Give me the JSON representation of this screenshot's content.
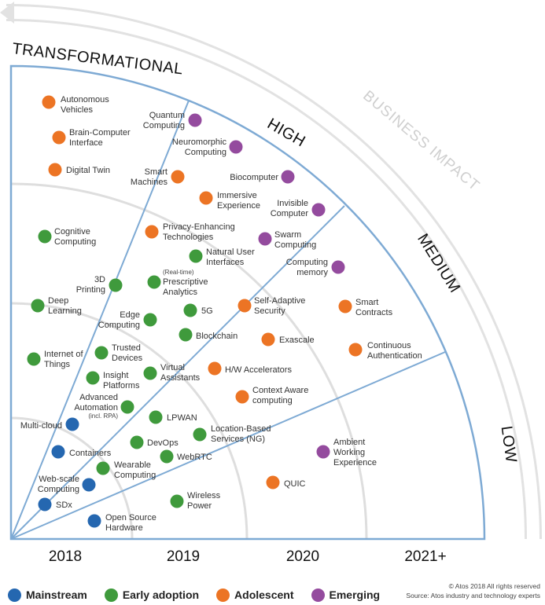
{
  "impact_levels": {
    "transformational": "TRANSFORMATIONAL",
    "high": "HIGH",
    "medium": "MEDIUM",
    "low": "LOW"
  },
  "axis_title": "BUSINESS IMPACT",
  "years": [
    "2018",
    "2019",
    "2020",
    "2021+"
  ],
  "legend": [
    {
      "key": "mainstream",
      "label": "Mainstream",
      "color": "#2567b0"
    },
    {
      "key": "early",
      "label": "Early adoption",
      "color": "#3f9a3c"
    },
    {
      "key": "adolescent",
      "label": "Adolescent",
      "color": "#ec7424"
    },
    {
      "key": "emerging",
      "label": "Emerging",
      "color": "#944b9e"
    }
  ],
  "footer": {
    "copyright": "© Atos 2018 All rights reserved",
    "source": "Source: Atos industry and technology experts"
  },
  "technologies": [
    {
      "name": "Autonomous Vehicles",
      "stage": "adolescent"
    },
    {
      "name": "Brain-Computer Interface",
      "stage": "adolescent"
    },
    {
      "name": "Digital Twin",
      "stage": "adolescent"
    },
    {
      "name": "Quantum Computing",
      "stage": "emerging"
    },
    {
      "name": "Neuromorphic Computing",
      "stage": "emerging"
    },
    {
      "name": "Smart Machines",
      "stage": "adolescent"
    },
    {
      "name": "Biocomputer",
      "stage": "emerging"
    },
    {
      "name": "Immersive Experience",
      "stage": "adolescent"
    },
    {
      "name": "Invisible Computer",
      "stage": "emerging"
    },
    {
      "name": "Cognitive Computing",
      "stage": "early"
    },
    {
      "name": "Privacy-Enhancing Technologies",
      "stage": "adolescent"
    },
    {
      "name": "Swarm Computing",
      "stage": "emerging"
    },
    {
      "name": "Natural User Interfaces",
      "stage": "early"
    },
    {
      "name": "Computing memory",
      "stage": "emerging"
    },
    {
      "name": "3D Printing",
      "stage": "early"
    },
    {
      "name": "(Real-time)",
      "stage": "early"
    },
    {
      "name": "Prescriptive Analytics",
      "stage": "early"
    },
    {
      "name": "Deep Learning",
      "stage": "early"
    },
    {
      "name": "Self-Adaptive Security",
      "stage": "adolescent"
    },
    {
      "name": "Smart Contracts",
      "stage": "adolescent"
    },
    {
      "name": "5G",
      "stage": "early"
    },
    {
      "name": "Edge Computing",
      "stage": "early"
    },
    {
      "name": "Blockchain",
      "stage": "early"
    },
    {
      "name": "Exascale",
      "stage": "adolescent"
    },
    {
      "name": "Continuous Authentication",
      "stage": "adolescent"
    },
    {
      "name": "Trusted Devices",
      "stage": "early"
    },
    {
      "name": "Internet of Things",
      "stage": "early"
    },
    {
      "name": "Virtual Assistants",
      "stage": "early"
    },
    {
      "name": "H/W Accelerators",
      "stage": "adolescent"
    },
    {
      "name": "Insight Platforms",
      "stage": "early"
    },
    {
      "name": "Context Aware computing",
      "stage": "adolescent"
    },
    {
      "name": "Advanced Automation",
      "stage": "early"
    },
    {
      "name": "(incl. RPA)",
      "stage": "early"
    },
    {
      "name": "LPWAN",
      "stage": "early"
    },
    {
      "name": "Multi-cloud",
      "stage": "mainstream"
    },
    {
      "name": "Location-Based Services (NG)",
      "stage": "early"
    },
    {
      "name": "DevOps",
      "stage": "early"
    },
    {
      "name": "Containers",
      "stage": "mainstream"
    },
    {
      "name": "WebRTC",
      "stage": "early"
    },
    {
      "name": "Ambient Working Experience",
      "stage": "emerging"
    },
    {
      "name": "Wearable Computing",
      "stage": "early"
    },
    {
      "name": "Web-scale Computing",
      "stage": "mainstream"
    },
    {
      "name": "QUIC",
      "stage": "adolescent"
    },
    {
      "name": "SDx",
      "stage": "mainstream"
    },
    {
      "name": "Wireless Power",
      "stage": "early"
    },
    {
      "name": "Open Source Hardware",
      "stage": "mainstream"
    }
  ]
}
